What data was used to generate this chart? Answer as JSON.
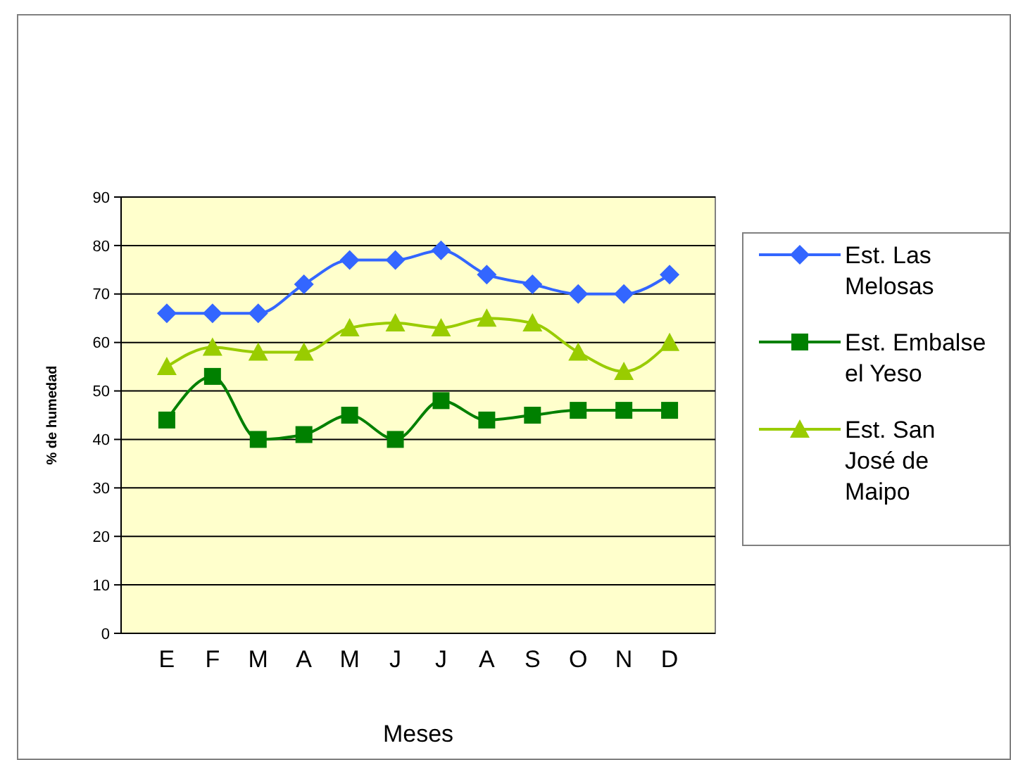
{
  "chart_data": {
    "type": "line",
    "xlabel": "Meses",
    "ylabel": "% de humedad",
    "categories": [
      "E",
      "F",
      "M",
      "A",
      "M",
      "J",
      "J",
      "A",
      "S",
      "O",
      "N",
      "D"
    ],
    "series": [
      {
        "name": "Est. Las Melosas",
        "color": "#3366ff",
        "marker": "diamond",
        "values": [
          66,
          66,
          66,
          72,
          77,
          77,
          79,
          74,
          72,
          70,
          70,
          74
        ]
      },
      {
        "name": "Est. Embalse el Yeso",
        "color": "#008000",
        "marker": "square",
        "values": [
          44,
          53,
          40,
          41,
          45,
          40,
          48,
          44,
          45,
          46,
          46,
          46
        ]
      },
      {
        "name": "Est. San José de Maipo",
        "color": "#99cc00",
        "marker": "triangle",
        "values": [
          55,
          59,
          58,
          58,
          63,
          64,
          63,
          65,
          64,
          58,
          54,
          60
        ]
      }
    ],
    "ylim": [
      0,
      90
    ],
    "yticks": [
      0,
      10,
      20,
      30,
      40,
      50,
      60,
      70,
      80,
      90
    ],
    "grid": "y",
    "legend": "right",
    "line_style": "solid"
  }
}
